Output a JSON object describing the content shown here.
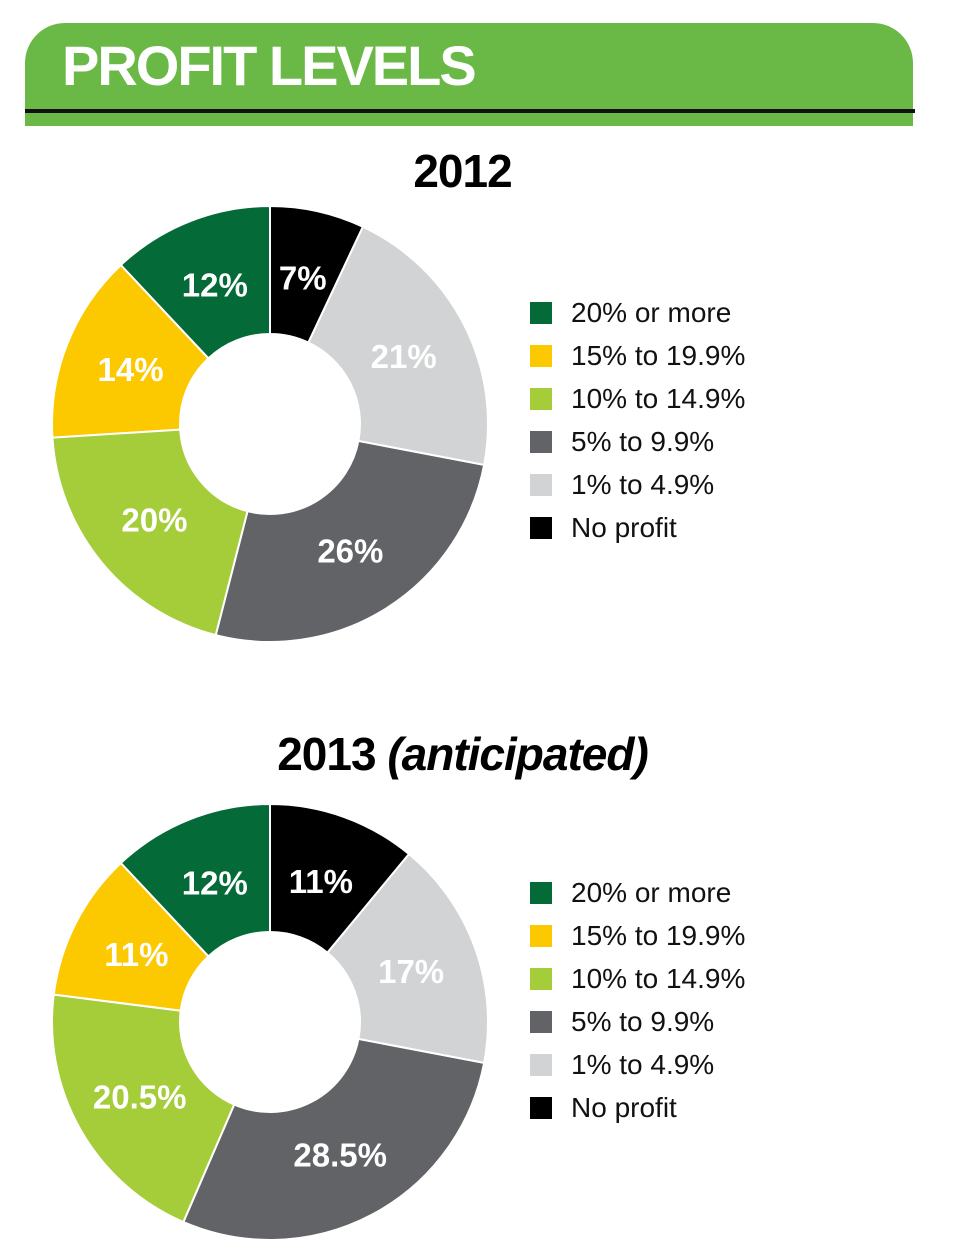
{
  "header": {
    "title": "PROFIT LEVELS"
  },
  "chart_data": [
    {
      "type": "pie",
      "title": "2012",
      "title_note": "",
      "categories": [
        "20% or more",
        "15% to 19.9%",
        "10% to 14.9%",
        "5% to 9.9%",
        "1% to 4.9%",
        "No profit"
      ],
      "values": [
        12,
        14,
        20,
        26,
        21,
        7
      ],
      "labels": [
        "12%",
        "14%",
        "20%",
        "26%",
        "21%",
        "7%"
      ],
      "colors": [
        "#046a38",
        "#fcc800",
        "#a5cd39",
        "#626366",
        "#d1d3d4",
        "#000000"
      ],
      "legend_placement": "right",
      "style": "donut"
    },
    {
      "type": "pie",
      "title": "2013",
      "title_note": "(anticipated)",
      "categories": [
        "20% or more",
        "15% to 19.9%",
        "10% to 14.9%",
        "5% to 9.9%",
        "1% to 4.9%",
        "No profit"
      ],
      "values": [
        12,
        11,
        20.5,
        28.5,
        17,
        11
      ],
      "labels": [
        "12%",
        "11%",
        "20.5%",
        "28.5%",
        "17%",
        "11%"
      ],
      "colors": [
        "#046a38",
        "#fcc800",
        "#a5cd39",
        "#626366",
        "#d1d3d4",
        "#000000"
      ],
      "legend_placement": "right",
      "style": "donut"
    }
  ]
}
